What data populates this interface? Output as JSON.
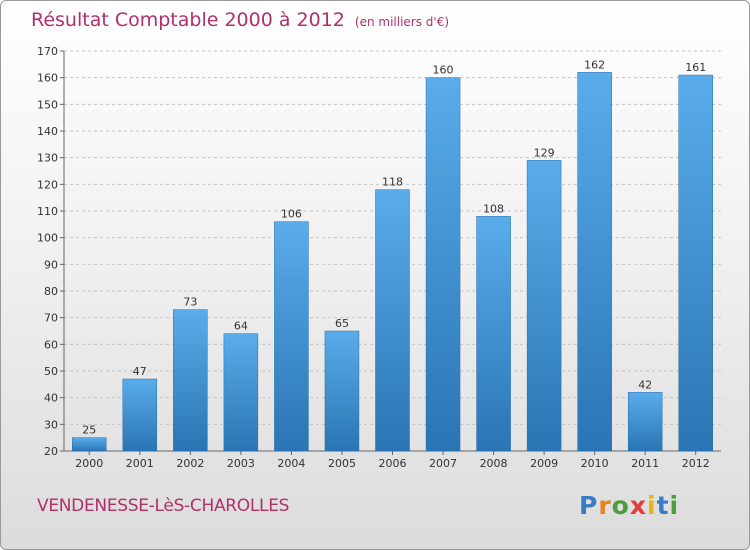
{
  "header": {
    "title": "Résultat Comptable 2000 à 2012",
    "subtitle": "(en milliers d'€)"
  },
  "footer": {
    "commune": "VENDENESSE-LèS-CHAROLLES",
    "logo": "Proxiti"
  },
  "colors": {
    "title": "#b0306a",
    "bar_top": "#5aacea",
    "bar_bottom": "#2a75b4",
    "logo_letters": [
      "#3a7cc4",
      "#e8821e",
      "#4c9e3a",
      "#e23c3c",
      "#e8b21e",
      "#3a7cc4",
      "#4c9e3a"
    ]
  },
  "chart_data": {
    "type": "bar",
    "title": "Résultat Comptable 2000 à 2012",
    "subtitle": "(en milliers d'€)",
    "xlabel": "",
    "ylabel": "",
    "categories": [
      "2000",
      "2001",
      "2002",
      "2003",
      "2004",
      "2005",
      "2006",
      "2007",
      "2008",
      "2009",
      "2010",
      "2011",
      "2012"
    ],
    "values": [
      25,
      47,
      73,
      64,
      106,
      65,
      118,
      160,
      108,
      129,
      162,
      42,
      161
    ],
    "ylim": [
      20,
      170
    ],
    "yticks": [
      20,
      30,
      40,
      50,
      60,
      70,
      80,
      90,
      100,
      110,
      120,
      130,
      140,
      150,
      160,
      170
    ],
    "grid": true,
    "legend": "none"
  }
}
